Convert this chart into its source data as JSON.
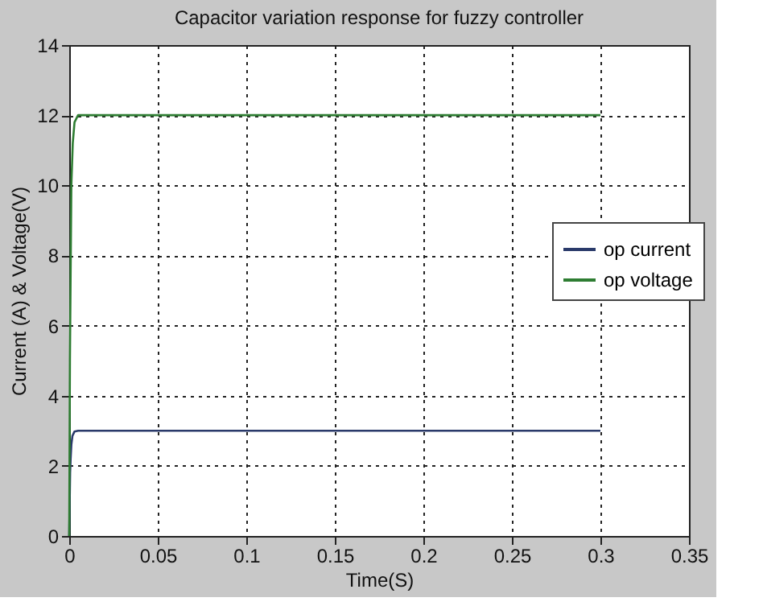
{
  "chart_data": {
    "type": "line",
    "title": "Capacitor variation response for fuzzy controller",
    "xlabel": "Time(S)",
    "ylabel": "Current (A) & Voltage(V)",
    "series": [
      {
        "name": "op current",
        "color": "#2a3a6a",
        "x": [
          0,
          0.0005,
          0.0008,
          0.0012,
          0.0018,
          0.003,
          0.005,
          0.3
        ],
        "values": [
          0,
          1.8,
          2.2,
          2.6,
          2.85,
          2.98,
          3,
          3
        ]
      },
      {
        "name": "op voltage",
        "color": "#2e7d32",
        "x": [
          0,
          0.0004,
          0.0008,
          0.0012,
          0.002,
          0.003,
          0.005,
          0.3
        ],
        "values": [
          0,
          5,
          7.5,
          10,
          11.2,
          11.8,
          12,
          12
        ]
      }
    ],
    "xlim": [
      0,
      0.35
    ],
    "xticks": [
      0,
      0.05,
      0.1,
      0.15,
      0.2,
      0.25,
      0.3,
      0.35
    ],
    "ylim": [
      0,
      14
    ],
    "yticks": [
      0,
      2,
      4,
      6,
      8,
      10,
      12,
      14
    ],
    "grid": true,
    "legend": "right",
    "line_style": "solid",
    "marker": "none"
  }
}
